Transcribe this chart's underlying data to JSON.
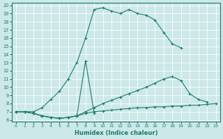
{
  "xlabel": "Humidex (Indice chaleur)",
  "color": "#1a7a6e",
  "background_color": "#cce8e8",
  "grid_color": "#b0d4d4",
  "ylim": [
    6,
    20
  ],
  "xlim": [
    0,
    23
  ],
  "yticks": [
    6,
    7,
    8,
    9,
    10,
    11,
    12,
    13,
    14,
    15,
    16,
    17,
    18,
    19,
    20
  ],
  "xticks": [
    0,
    1,
    2,
    3,
    4,
    5,
    6,
    7,
    8,
    9,
    10,
    11,
    12,
    13,
    14,
    15,
    16,
    17,
    18,
    19,
    20,
    21,
    22,
    23
  ],
  "lines": [
    {
      "x": [
        0,
        1,
        2,
        3,
        4,
        5,
        6,
        7,
        8,
        9,
        10,
        11,
        12,
        13,
        14,
        15,
        16,
        17,
        18,
        19
      ],
      "y": [
        7,
        7,
        7,
        7.5,
        8.5,
        9.5,
        11,
        13,
        16,
        19.5,
        19.7,
        19.3,
        19.0,
        19.5,
        19.0,
        18.8,
        18.2,
        16.7,
        15.3,
        14.8
      ]
    },
    {
      "x": [
        0,
        1,
        2,
        3,
        4,
        5,
        6,
        7,
        8,
        9
      ],
      "y": [
        7,
        7,
        6.8,
        6.5,
        6.3,
        6.2,
        6.3,
        6.5,
        13.2,
        6.8
      ]
    },
    {
      "x": [
        0,
        1,
        2,
        3,
        4,
        5,
        6,
        7,
        8,
        9,
        10,
        11,
        12,
        13,
        14,
        15,
        16,
        17,
        18,
        19,
        20,
        21,
        22
      ],
      "y": [
        7,
        7,
        6.8,
        6.5,
        6.3,
        6.2,
        6.3,
        6.5,
        7.0,
        7.5,
        8.0,
        8.4,
        8.8,
        9.2,
        9.6,
        10.0,
        10.5,
        11.0,
        11.3,
        10.8,
        9.2,
        8.5,
        8.2
      ]
    },
    {
      "x": [
        0,
        1,
        2,
        3,
        4,
        5,
        6,
        7,
        8,
        9,
        10,
        11,
        12,
        13,
        14,
        15,
        16,
        17,
        18,
        19,
        20,
        21,
        22,
        23
      ],
      "y": [
        7,
        7,
        6.8,
        6.5,
        6.3,
        6.2,
        6.3,
        6.5,
        6.8,
        7.0,
        7.1,
        7.2,
        7.3,
        7.4,
        7.5,
        7.5,
        7.6,
        7.6,
        7.7,
        7.7,
        7.8,
        7.8,
        7.9,
        8.0
      ]
    }
  ]
}
